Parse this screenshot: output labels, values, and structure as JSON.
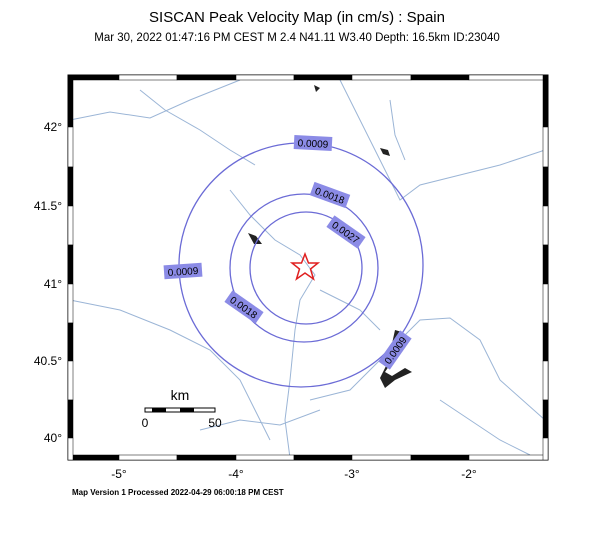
{
  "header": {
    "title": "SISCAN Peak Velocity Map (in cm/s) : Spain",
    "subtitle": "Mar 30, 2022 01:47:16 PM CEST   M 2.4   N41.11 W3.40   Depth: 16.5km   ID:23040"
  },
  "axes": {
    "x_labels": [
      "-5°",
      "-4°",
      "-3°",
      "-2°"
    ],
    "y_labels": [
      "42°",
      "41.5°",
      "41°",
      "40.5°",
      "40°"
    ]
  },
  "contours": [
    "0.0009",
    "0.0018",
    "0.0027",
    "0.0009",
    "0.0018",
    "0.0009"
  ],
  "scale_bar": {
    "unit": "km",
    "labels": [
      "0",
      "50"
    ]
  },
  "footer": "Map Version 1 Processed 2022-04-29 06:00:18 PM CEST"
}
